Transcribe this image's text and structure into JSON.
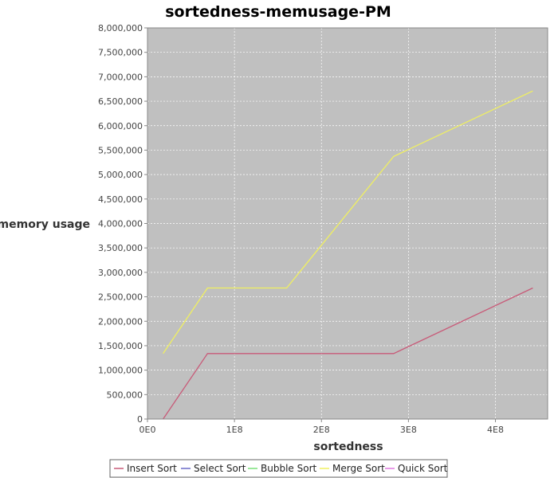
{
  "chart_data": {
    "type": "line",
    "title": "sortedness-memusage-PM",
    "xlabel": "sortedness",
    "ylabel": "memory usage",
    "xlim": [
      0,
      460000000
    ],
    "ylim": [
      0,
      8000000
    ],
    "x_ticks": [
      {
        "value": 0,
        "label": "0E0"
      },
      {
        "value": 100000000,
        "label": "1E8"
      },
      {
        "value": 200000000,
        "label": "2E8"
      },
      {
        "value": 300000000,
        "label": "3E8"
      },
      {
        "value": 400000000,
        "label": "4E8"
      }
    ],
    "y_ticks": [
      {
        "value": 0,
        "label": "0"
      },
      {
        "value": 500000,
        "label": "500,000"
      },
      {
        "value": 1000000,
        "label": "1,000,000"
      },
      {
        "value": 1500000,
        "label": "1,500,000"
      },
      {
        "value": 2000000,
        "label": "2,000,000"
      },
      {
        "value": 2500000,
        "label": "2,500,000"
      },
      {
        "value": 3000000,
        "label": "3,000,000"
      },
      {
        "value": 3500000,
        "label": "3,500,000"
      },
      {
        "value": 4000000,
        "label": "4,000,000"
      },
      {
        "value": 4500000,
        "label": "4,500,000"
      },
      {
        "value": 5000000,
        "label": "5,000,000"
      },
      {
        "value": 5500000,
        "label": "5,500,000"
      },
      {
        "value": 6000000,
        "label": "6,000,000"
      },
      {
        "value": 6500000,
        "label": "6,500,000"
      },
      {
        "value": 7000000,
        "label": "7,000,000"
      },
      {
        "value": 7500000,
        "label": "7,500,000"
      },
      {
        "value": 8000000,
        "label": "8,000,000"
      }
    ],
    "grid": true,
    "legend_position": "bottom",
    "plot_background": "#c0c0c0",
    "series": [
      {
        "name": "Insert Sort",
        "color": "#c85a78",
        "points": [
          [
            18000000,
            0
          ],
          [
            69000000,
            1340000
          ],
          [
            160000000,
            1340000
          ],
          [
            283000000,
            1340000
          ],
          [
            443000000,
            2680000
          ]
        ]
      },
      {
        "name": "Select Sort",
        "color": "#6a6ac8",
        "points": []
      },
      {
        "name": "Bubble Sort",
        "color": "#78e078",
        "points": []
      },
      {
        "name": "Merge Sort",
        "color": "#f0f060",
        "points": [
          [
            18000000,
            1340000
          ],
          [
            69000000,
            2680000
          ],
          [
            160000000,
            2680000
          ],
          [
            283000000,
            5370000
          ],
          [
            443000000,
            6710000
          ]
        ]
      },
      {
        "name": "Quick Sort",
        "color": "#e078e0",
        "points": []
      }
    ]
  }
}
